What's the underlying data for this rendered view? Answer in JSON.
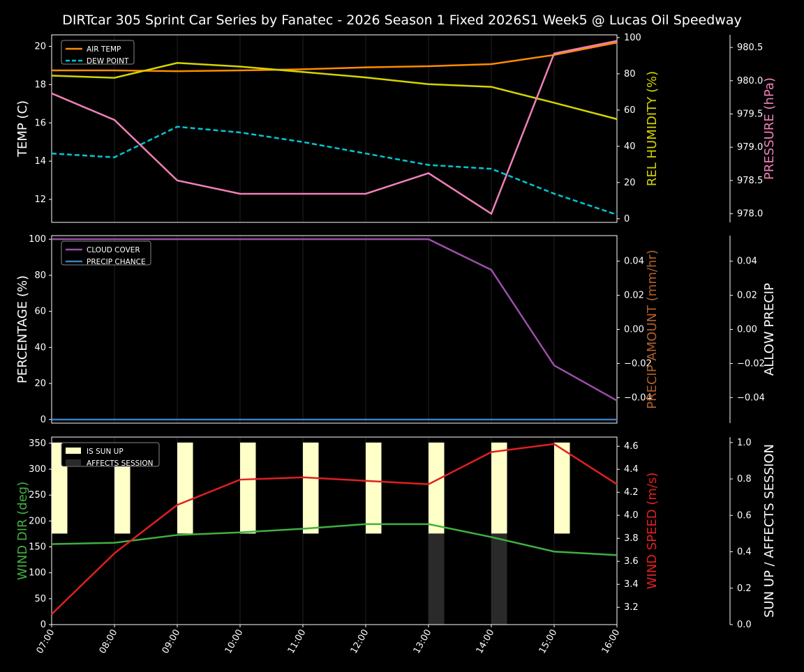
{
  "chart_data": {
    "title": "DIRTcar 305 Sprint Car Series by Fanatec - 2026 Season 1 Fixed 2026S1 Week5 @ Lucas Oil Speedway",
    "x": [
      "07:00",
      "08:00",
      "09:00",
      "10:00",
      "11:00",
      "12:00",
      "13:00",
      "14:00",
      "15:00",
      "16:00"
    ],
    "panels": [
      {
        "type": "line",
        "ylabel": "TEMP (C)",
        "ylim": [
          10.8,
          20.6
        ],
        "yticks": [
          12,
          14,
          16,
          18,
          20
        ],
        "right_axes": [
          {
            "label": "REL HUMIDITY (%)",
            "color": "#d4d400",
            "ylim": [
              -2,
              101.5
            ],
            "ticks": [
              0,
              20,
              40,
              60,
              80,
              100
            ]
          },
          {
            "label": "PRESSURE (hPa)",
            "color": "#f080b8",
            "ylim": [
              977.87,
              980.69
            ],
            "ticks": [
              "978.0",
              "978.5",
              "979.0",
              "979.5",
              "980.0",
              "980.5"
            ]
          }
        ],
        "legend": [
          "AIR TEMP",
          "DEW POINT"
        ],
        "series": [
          {
            "name": "AIR TEMP",
            "axis": 0,
            "color": "#ff8c00",
            "dash": false,
            "values": [
              18.74,
              18.74,
              18.7,
              18.74,
              18.8,
              18.9,
              18.96,
              19.07,
              19.55,
              20.2
            ]
          },
          {
            "name": "DEW POINT",
            "axis": 0,
            "color": "#00c8d4",
            "dash": true,
            "values": [
              14.4,
              14.2,
              15.8,
              15.5,
              15.0,
              14.4,
              13.8,
              13.6,
              12.3,
              11.2
            ]
          },
          {
            "axis": 1,
            "color": "#d4d400",
            "dash": false,
            "values": [
              79,
              77.8,
              86,
              84,
              81,
              78,
              74.3,
              72.8,
              64,
              55
            ]
          },
          {
            "axis": 2,
            "color": "#f080b8",
            "dash": false,
            "values": [
              979.81,
              979.41,
              978.5,
              978.3,
              978.3,
              978.3,
              978.61,
              978.0,
              980.41,
              980.6
            ]
          }
        ]
      },
      {
        "type": "line",
        "ylabel": "PERCENTAGE (%)",
        "ylim": [
          -2,
          102
        ],
        "yticks": [
          0,
          20,
          40,
          60,
          80,
          100
        ],
        "right_axes": [
          {
            "label": "PRECIP AMOUNT (mm/hr)",
            "color": "#b0602a",
            "ylim": [
              -0.055,
              0.055
            ],
            "ticks": [
              "−0.04",
              "−0.02",
              "0.00",
              "0.02",
              "0.04"
            ]
          },
          {
            "label": "ALLOW PRECIP",
            "color": "#ffffff",
            "ylim": [
              -0.055,
              0.055
            ],
            "ticks": [
              "−0.04",
              "−0.02",
              "0.00",
              "0.02",
              "0.04"
            ]
          }
        ],
        "legend": [
          "CLOUD COVER",
          "PRECIP CHANCE"
        ],
        "series": [
          {
            "name": "CLOUD COVER",
            "axis": 0,
            "color": "#9b4fa8",
            "dash": false,
            "values": [
              100,
              100,
              100,
              100,
              100,
              100,
              100,
              83,
              30,
              10.5
            ]
          },
          {
            "name": "PRECIP CHANCE",
            "axis": 0,
            "color": "#3a80c0",
            "dash": false,
            "values": [
              0,
              0,
              0,
              0,
              0,
              0,
              0,
              0,
              0,
              0
            ]
          }
        ]
      },
      {
        "type": "line",
        "ylabel": "WIND DIR (deg)",
        "ylim": [
          0,
          362
        ],
        "yticks": [
          0,
          50,
          100,
          150,
          200,
          250,
          300,
          350
        ],
        "right_axes": [
          {
            "label": "WIND SPEED (m/s)",
            "color": "#e02020",
            "ylim": [
              3.05,
              4.68
            ],
            "ticks": [
              "3.2",
              "3.4",
              "3.6",
              "3.8",
              "4.0",
              "4.2",
              "4.4",
              "4.6"
            ]
          },
          {
            "label": "SUN UP / AFFECTS SESSION",
            "color": "#ffffff",
            "ylim": [
              0,
              1.03
            ],
            "ticks": [
              "0.0",
              "0.2",
              "0.4",
              "0.6",
              "0.8",
              "1.0"
            ]
          }
        ],
        "legend": [
          "IS SUN UP",
          "AFFECTS SESSION"
        ],
        "is_sun_up": [
          1,
          1,
          1,
          1,
          1,
          1,
          1,
          1,
          1,
          0
        ],
        "affects_session": [
          0,
          0,
          0,
          0,
          0,
          0,
          1,
          1,
          0,
          0
        ],
        "series": [
          {
            "name": "WIND DIR",
            "axis": 0,
            "color": "#40b040",
            "dash": false,
            "values": [
              155.5,
              158,
              173,
              178,
              185,
              194,
              194,
              169,
              141,
              134
            ]
          },
          {
            "name": "WIND SPEED",
            "axis": 1,
            "color": "#e02020",
            "dash": false,
            "values": [
              3.14,
              3.67,
              4.09,
              4.31,
              4.33,
              4.3,
              4.27,
              4.55,
              4.62,
              4.27
            ]
          }
        ]
      }
    ]
  }
}
